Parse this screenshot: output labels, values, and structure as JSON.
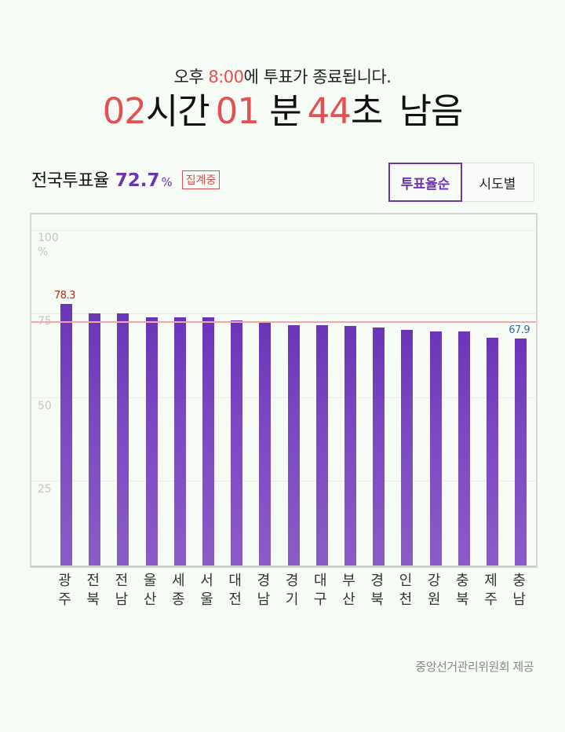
{
  "header": {
    "notice_prefix": "오후 ",
    "notice_time": "8:00",
    "notice_suffix": "에 투표가 종료됩니다.",
    "countdown": {
      "hours": "02",
      "hours_unit": "시간",
      "minutes": "01",
      "minutes_unit": "분",
      "seconds": "44",
      "seconds_unit": "초",
      "remaining": "남음"
    }
  },
  "summary": {
    "label": "전국투표율",
    "value": "72.7",
    "unit": "%",
    "badge": "집계중"
  },
  "toggle": {
    "options": [
      {
        "label": "투표율순",
        "active": true
      },
      {
        "label": "시도별",
        "active": false
      }
    ]
  },
  "colors": {
    "accent": "#6a35b0",
    "countdown": "#e05252",
    "average_line": "#f0a8a8",
    "max_label": "#b02a1c",
    "min_label": "#2e6aa3"
  },
  "chart_data": {
    "type": "bar",
    "title": "시도별 투표율",
    "ylabel": "%",
    "ylim": [
      0,
      100
    ],
    "yticks": [
      25,
      50,
      75,
      100
    ],
    "ytick_labels": [
      "25",
      "50",
      "75",
      "100"
    ],
    "y_unit_label": "%",
    "average_line": 72.7,
    "categories": [
      "광주",
      "전북",
      "전남",
      "울산",
      "세종",
      "서울",
      "대전",
      "경남",
      "경기",
      "대구",
      "부산",
      "경북",
      "인천",
      "강원",
      "충북",
      "제주",
      "충남"
    ],
    "category_lines": [
      [
        "광",
        "주"
      ],
      [
        "전",
        "북"
      ],
      [
        "전",
        "남"
      ],
      [
        "울",
        "산"
      ],
      [
        "세",
        "종"
      ],
      [
        "서",
        "울"
      ],
      [
        "대",
        "전"
      ],
      [
        "경",
        "남"
      ],
      [
        "경",
        "기"
      ],
      [
        "대",
        "구"
      ],
      [
        "부",
        "산"
      ],
      [
        "경",
        "북"
      ],
      [
        "인",
        "천"
      ],
      [
        "강",
        "원"
      ],
      [
        "충",
        "북"
      ],
      [
        "제",
        "주"
      ],
      [
        "충",
        "남"
      ]
    ],
    "values": [
      78.3,
      75.5,
      75.5,
      74.3,
      74.3,
      74.3,
      73.3,
      72.8,
      72.1,
      72.1,
      71.7,
      71.4,
      70.6,
      70.2,
      70.2,
      68.2,
      67.9
    ],
    "labeled_points": [
      {
        "index": 0,
        "text": "78.3",
        "kind": "max"
      },
      {
        "index": 16,
        "text": "67.9",
        "kind": "min"
      }
    ],
    "grid": true,
    "legend": "none"
  },
  "footer": {
    "source": "중앙선거관리위원회 제공"
  }
}
